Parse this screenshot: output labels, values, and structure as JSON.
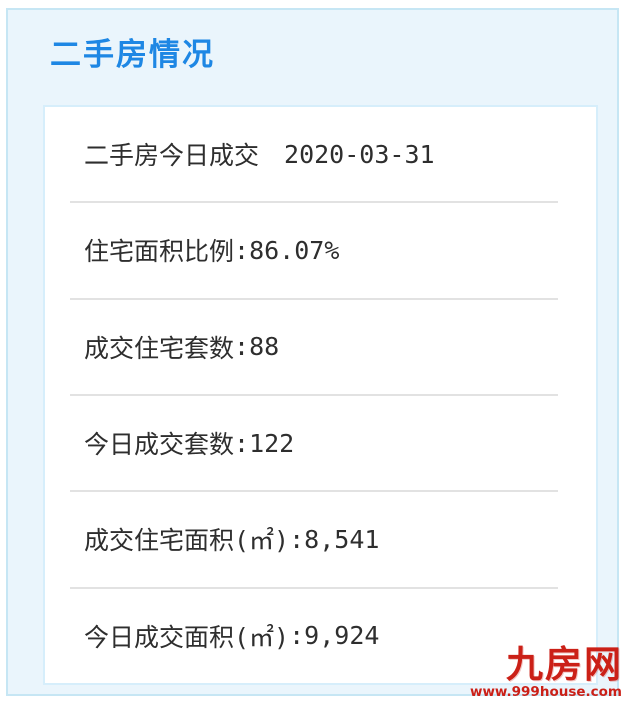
{
  "panel": {
    "title": "二手房情况"
  },
  "card": {
    "rows": [
      {
        "label": "二手房今日成交",
        "sep": "　",
        "value": "2020-03-31"
      },
      {
        "label": "住宅面积比例",
        "sep": ":",
        "value": "86.07%"
      },
      {
        "label": "成交住宅套数",
        "sep": ":",
        "value": "88"
      },
      {
        "label": "今日成交套数",
        "sep": ":",
        "value": "122"
      },
      {
        "label": "成交住宅面积(㎡)",
        "sep": ":",
        "value": "8,541"
      },
      {
        "label": "今日成交面积(㎡)",
        "sep": ":",
        "value": "9,924"
      }
    ]
  },
  "watermark": {
    "logo_text": "九房网",
    "url": "www.999house.com"
  },
  "colors": {
    "title_blue": "#1e87e4",
    "panel_bg": "#eaf5fc",
    "panel_border": "#c6e6f4",
    "card_bg": "#ffffff",
    "card_border": "#d6eefb",
    "row_text": "#2e2e2e",
    "divider_gray": "#e2e2e2",
    "logo_red": "#cb2017"
  }
}
